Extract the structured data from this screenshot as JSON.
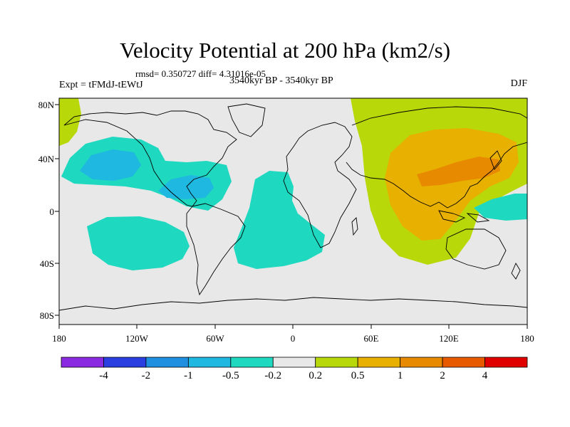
{
  "title": "Velocity Potential at 200 hPa (km2/s)",
  "stats": "rmsd= 0.350727 diff= 4.31016e-05",
  "experiment": "Expt = tFMdJ-tEWtJ",
  "period": "3540kyr BP - 3540kyr BP",
  "season": "DJF",
  "lat_labels": [
    "80N",
    "40N",
    "0",
    "40S",
    "80S"
  ],
  "lon_labels": [
    "180",
    "120W",
    "60W",
    "0",
    "60E",
    "120E",
    "180"
  ],
  "colorbar": {
    "colors": [
      "#8a2be2",
      "#2b3fe0",
      "#1f8fe0",
      "#1fb8e0",
      "#1fd8c0",
      "#e8e8e8",
      "#b8d80a",
      "#e8b000",
      "#e88a00",
      "#e85a00",
      "#e00000"
    ],
    "labels": [
      "-4",
      "-2",
      "-1",
      "-0.5",
      "-0.2",
      "0.2",
      "0.5",
      "1",
      "2",
      "4"
    ]
  },
  "colors": {
    "neutral": "#e8e8e8",
    "neg_light": "#1fd8c0",
    "neg_mid": "#1fb8e0",
    "pos_light": "#b8d80a",
    "pos_mid": "#e8b000",
    "pos_strong": "#e88a00"
  }
}
